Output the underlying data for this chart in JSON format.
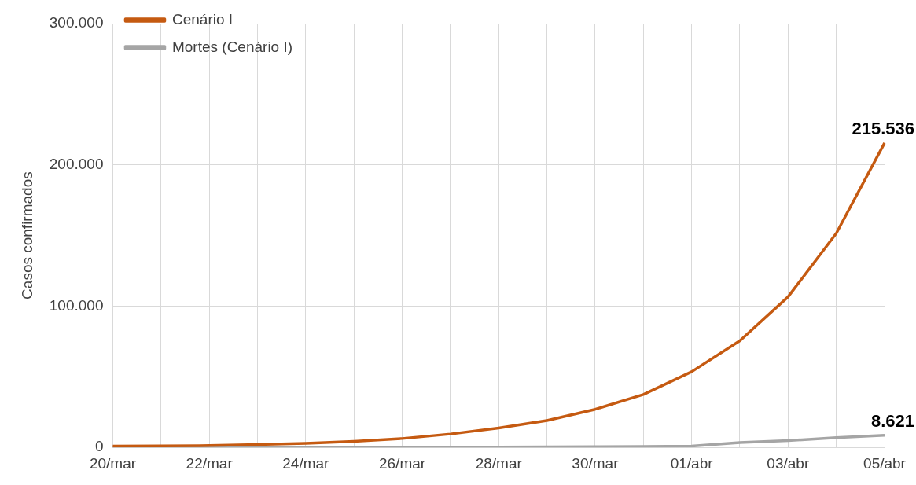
{
  "chart_data": {
    "type": "line",
    "ylabel": "Casos confirmados",
    "categories": [
      "20/mar",
      null,
      "22/mar",
      null,
      "24/mar",
      null,
      "26/mar",
      null,
      "28/mar",
      null,
      "30/mar",
      null,
      "01/abr",
      null,
      "03/abr",
      null,
      "05/abr"
    ],
    "series": [
      {
        "name": "Cenário I",
        "color": "#c55a11",
        "values": [
          900,
          1100,
          1300,
          2000,
          2900,
          4300,
          6300,
          9500,
          13800,
          19000,
          27000,
          37500,
          53600,
          75500,
          106600,
          151600,
          215536
        ],
        "value_labels": [
          null,
          null,
          null,
          null,
          null,
          null,
          null,
          null,
          null,
          null,
          null,
          null,
          null,
          null,
          null,
          null,
          "215.536"
        ]
      },
      {
        "name": "Mortes (Cenário I)",
        "color": "#a5a5a5",
        "values": [
          100,
          100,
          100,
          100,
          150,
          150,
          200,
          250,
          300,
          400,
          500,
          700,
          1000,
          3500,
          4800,
          6900,
          8621
        ],
        "value_labels": [
          null,
          null,
          null,
          null,
          null,
          null,
          null,
          null,
          null,
          null,
          null,
          null,
          null,
          null,
          null,
          null,
          "8.621"
        ]
      }
    ],
    "ylim": [
      0,
      300000
    ],
    "yticks": [
      {
        "value": 0,
        "label": "0"
      },
      {
        "value": 100000,
        "label": "100.000"
      },
      {
        "value": 200000,
        "label": "200.000"
      },
      {
        "value": 300000,
        "label": "300.000"
      }
    ],
    "grid": true,
    "legend": "top left",
    "marker": "none"
  }
}
